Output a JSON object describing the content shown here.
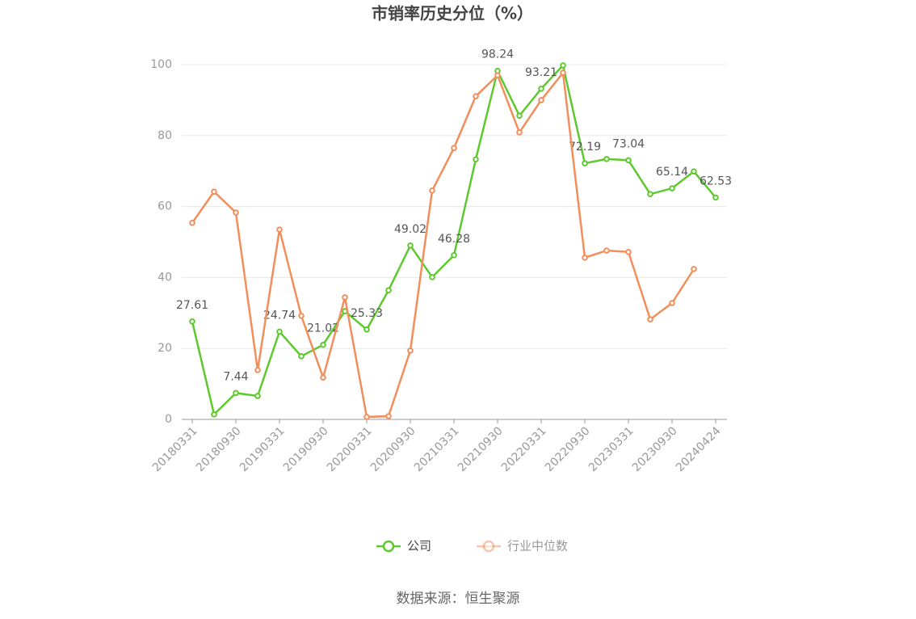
{
  "chart_data": {
    "type": "line",
    "title": "市销率历史分位（%）",
    "categories": [
      "20180331",
      null,
      "20180930",
      null,
      "20190331",
      null,
      "20190930",
      null,
      "20200331",
      null,
      "20200930",
      null,
      "20210331",
      null,
      "20210930",
      null,
      "20220331",
      null,
      "20220930",
      null,
      "20230331",
      null,
      "20230930",
      null,
      "20240424"
    ],
    "series": [
      {
        "name": "公司",
        "color": "#5ec92f",
        "values": [
          27.61,
          1.4,
          7.44,
          6.6,
          24.74,
          17.8,
          21.02,
          30.5,
          25.33,
          36.4,
          49.02,
          40.1,
          46.28,
          73.3,
          98.24,
          85.6,
          93.21,
          99.8,
          72.19,
          73.4,
          73.04,
          63.5,
          65.14,
          69.9,
          62.53
        ]
      },
      {
        "name": "行业中位数",
        "color": "#f28e5c",
        "values": [
          55.4,
          64.2,
          58.3,
          13.9,
          53.5,
          29.2,
          11.8,
          34.4,
          0.7,
          0.9,
          19.4,
          64.5,
          76.5,
          91.1,
          97.0,
          80.9,
          90.0,
          97.7,
          45.6,
          47.6,
          47.2,
          28.2,
          32.8,
          42.4,
          null
        ]
      }
    ],
    "ylim": [
      0,
      100
    ],
    "yticks": [
      0,
      20,
      40,
      60,
      80,
      100
    ],
    "grid": true,
    "source": "数据来源：恒生聚源"
  }
}
